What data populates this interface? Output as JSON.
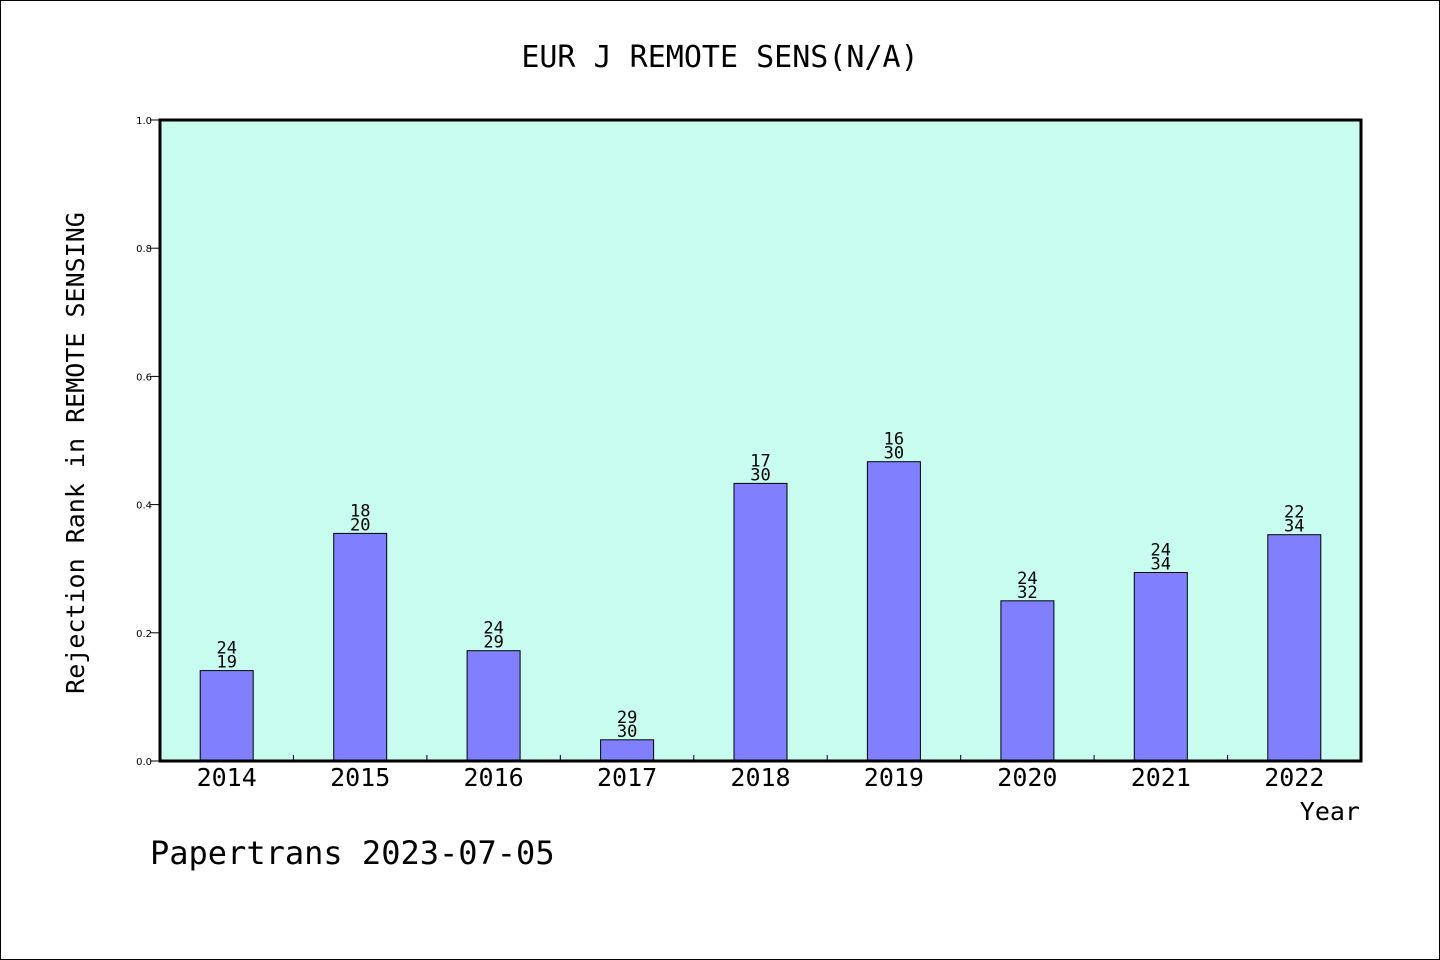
{
  "chart_data": {
    "type": "bar",
    "title": "EUR J REMOTE SENS(N/A)",
    "xlabel": "Year",
    "ylabel": "Rejection Rank in REMOTE SENSING",
    "ylim": [
      0,
      1.0
    ],
    "yticks": [
      "0.0",
      "0.2",
      "0.4",
      "0.6",
      "0.8",
      "1.0"
    ],
    "categories": [
      "2014",
      "2015",
      "2016",
      "2017",
      "2018",
      "2019",
      "2020",
      "2021",
      "2022"
    ],
    "values": [
      0.141,
      0.355,
      0.172,
      0.033,
      0.433,
      0.467,
      0.25,
      0.294,
      0.353
    ],
    "label_top": [
      "24",
      "18",
      "24",
      "29",
      "17",
      "16",
      "24",
      "24",
      "22"
    ],
    "label_bottom": [
      "19",
      "20",
      "29",
      "30",
      "30",
      "30",
      "32",
      "34",
      "34"
    ],
    "grid": false,
    "colors": {
      "plot_background": "#c8fcee",
      "bar_fill": "#8080ff",
      "bar_stroke": "#000000"
    }
  },
  "footer": "Papertrans 2023-07-05"
}
